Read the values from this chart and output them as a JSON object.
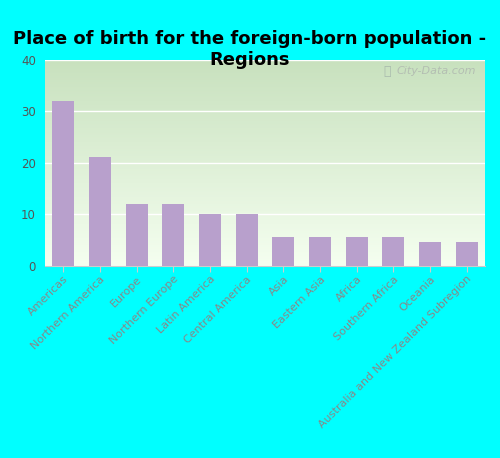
{
  "title": "Place of birth for the foreign-born population -\nRegions",
  "categories": [
    "Americas",
    "Northern America",
    "Europe",
    "Northern Europe",
    "Latin America",
    "Central America",
    "Asia",
    "Eastern Asia",
    "Africa",
    "Southern Africa",
    "Oceania",
    "Australia and New Zealand Subregion"
  ],
  "values": [
    32,
    21,
    12,
    12,
    10,
    10,
    5.5,
    5.5,
    5.5,
    5.5,
    4.5,
    4.5
  ],
  "bar_color": "#b8a0cc",
  "background_color": "#00ffff",
  "plot_bg_topleft": "#c8ddb8",
  "plot_bg_bottomright": "#f0f8f0",
  "ylim": [
    0,
    40
  ],
  "yticks": [
    0,
    10,
    20,
    30,
    40
  ],
  "title_fontsize": 13,
  "tick_fontsize": 8,
  "label_color": "#888888",
  "watermark": "City-Data.com"
}
